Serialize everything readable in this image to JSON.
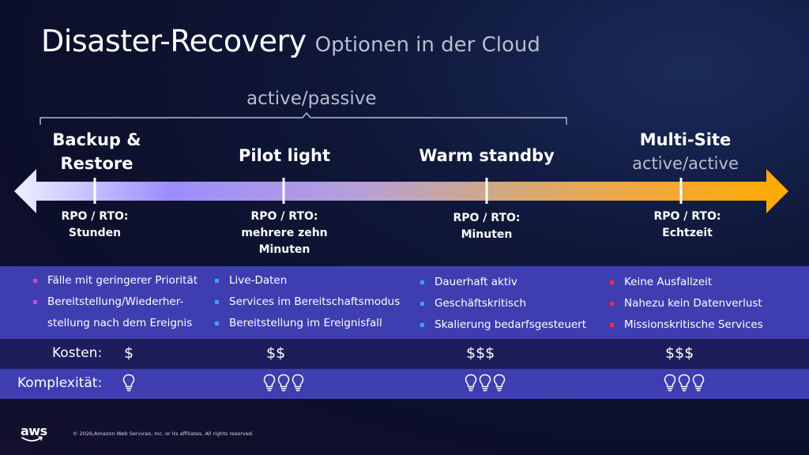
{
  "title": {
    "main": "Disaster-Recovery",
    "sub": "Optionen in der Cloud"
  },
  "bracket_label": "active/passive",
  "stages": [
    {
      "title_line1": "Backup &",
      "title_line2": "Restore",
      "rpo_label": "RPO / RTO:",
      "rpo_value_1": "Stunden",
      "rpo_value_2": ""
    },
    {
      "title_line1": "Pilot light",
      "rpo_label": "RPO / RTO:",
      "rpo_value_1": "mehrere zehn",
      "rpo_value_2": "Minuten"
    },
    {
      "title_line1": "Warm standby",
      "rpo_label": "RPO / RTO:",
      "rpo_value_1": "Minuten",
      "rpo_value_2": ""
    },
    {
      "title_line1": "Multi-Site",
      "title_line2": "active/active",
      "rpo_label": "RPO / RTO:",
      "rpo_value_1": "Echtzeit",
      "rpo_value_2": ""
    }
  ],
  "bullets": [
    {
      "color": "#e040c8",
      "items": [
        "Fälle mit geringerer Priorität",
        "Bereitstellung/Wiederher-",
        "stellung nach dem Ereignis"
      ]
    },
    {
      "color": "#3aa0ff",
      "items": [
        "Live-Daten",
        "Services im Bereitschaftsmodus",
        "Bereitstellung im Ereignisfall"
      ]
    },
    {
      "color": "#3aa0ff",
      "items": [
        "Dauerhaft aktiv",
        "Geschäftskritisch",
        "Skalierung bedarfsgesteuert"
      ]
    },
    {
      "color": "#ff2a3a",
      "items": [
        "Keine Ausfallzeit",
        "Nahezu kein Datenverlust",
        "Missionskritische Services"
      ]
    }
  ],
  "cost": {
    "label": "Kosten:",
    "values": [
      "$",
      "$$",
      "$$$",
      "$$$"
    ]
  },
  "complexity": {
    "label": "Komplexität:",
    "bulb_counts": [
      1,
      3,
      3,
      3
    ],
    "icon": "lightbulb-icon"
  },
  "footer": {
    "logo": "aws",
    "copyright": "© 2026,Amazon Web Services, Inc. or its affiliates. All rights reserved."
  },
  "colors": {
    "arrow_start": "#e8ecff",
    "arrow_mid": "#9a8cff",
    "arrow_end": "#ffaa00",
    "band": "#3e3eb0",
    "band_dark": "#1d1d5c"
  }
}
